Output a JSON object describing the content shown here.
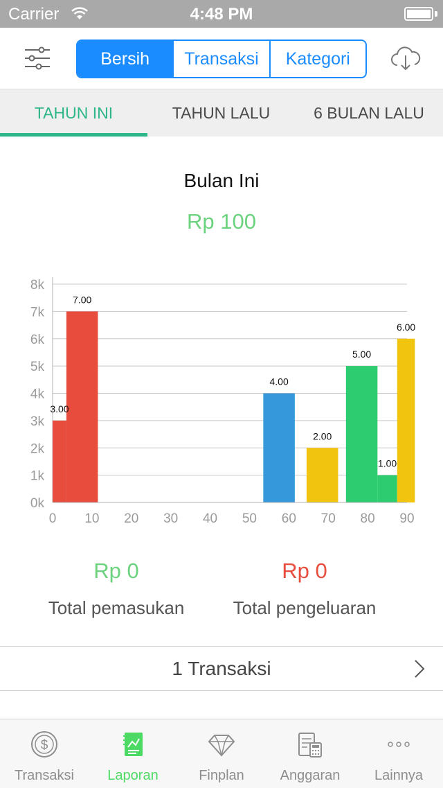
{
  "status_bar": {
    "carrier": "Carrier",
    "time": "4:48 PM"
  },
  "segments": [
    {
      "label": "Bersih",
      "active": true
    },
    {
      "label": "Transaksi",
      "active": false
    },
    {
      "label": "Kategori",
      "active": false
    }
  ],
  "period_tabs": [
    {
      "label": "TAHUN INI",
      "active": true
    },
    {
      "label": "TAHUN LALU",
      "active": false
    },
    {
      "label": "6 BULAN LALU",
      "active": false
    }
  ],
  "summary": {
    "title": "Bulan Ini",
    "amount": "Rp 100"
  },
  "chart_data": {
    "type": "bar",
    "title": "",
    "xlabel": "",
    "ylabel": "",
    "xlim": [
      0,
      90
    ],
    "ylim": [
      0,
      8000
    ],
    "x_ticks": [
      0,
      10,
      20,
      30,
      40,
      50,
      60,
      70,
      80,
      90
    ],
    "y_ticks": [
      {
        "value": 0,
        "label": "0k"
      },
      {
        "value": 1000,
        "label": "1k"
      },
      {
        "value": 2000,
        "label": "2k"
      },
      {
        "value": 3000,
        "label": "3k"
      },
      {
        "value": 4000,
        "label": "4k"
      },
      {
        "value": 5000,
        "label": "5k"
      },
      {
        "value": 6000,
        "label": "6k"
      },
      {
        "value": 7000,
        "label": "7k"
      },
      {
        "value": 8000,
        "label": "8k"
      }
    ],
    "grid": true,
    "bars": [
      {
        "x_start": 0,
        "x_end": 3.5,
        "value": 3000,
        "label": "3.00",
        "color": "#e74c3c"
      },
      {
        "x_start": 3.5,
        "x_end": 11.5,
        "value": 7000,
        "label": "7.00",
        "color": "#e74c3c"
      },
      {
        "x_start": 53.5,
        "x_end": 61.5,
        "value": 4000,
        "label": "4.00",
        "color": "#3498db"
      },
      {
        "x_start": 64.5,
        "x_end": 72.5,
        "value": 2000,
        "label": "2.00",
        "color": "#f1c40f"
      },
      {
        "x_start": 74.5,
        "x_end": 82.5,
        "value": 5000,
        "label": "5.00",
        "color": "#2ecc71"
      },
      {
        "x_start": 82.5,
        "x_end": 87.5,
        "value": 1000,
        "label": "1.00",
        "color": "#2ecc71"
      },
      {
        "x_start": 87.5,
        "x_end": 92,
        "value": 6000,
        "label": "6.00",
        "color": "#f1c40f"
      }
    ]
  },
  "totals": {
    "income_amount": "Rp 0",
    "income_label": "Total pemasukan",
    "expense_amount": "Rp 0",
    "expense_label": "Total pengeluaran"
  },
  "transactions_row": {
    "label": "1 Transaksi"
  },
  "tab_bar": [
    {
      "label": "Transaksi",
      "icon": "dollar-coin-icon",
      "active": false
    },
    {
      "label": "Laporan",
      "icon": "report-icon",
      "active": true
    },
    {
      "label": "Finplan",
      "icon": "diamond-icon",
      "active": false
    },
    {
      "label": "Anggaran",
      "icon": "budget-calculator-icon",
      "active": false
    },
    {
      "label": "Lainnya",
      "icon": "more-dots-icon",
      "active": false
    }
  ],
  "colors": {
    "accent_blue": "#1a8cff",
    "accent_green": "#2fb58a",
    "income_green": "#6bd37d",
    "expense_red": "#e74c3c",
    "status_bar": "#a9a9a9"
  }
}
